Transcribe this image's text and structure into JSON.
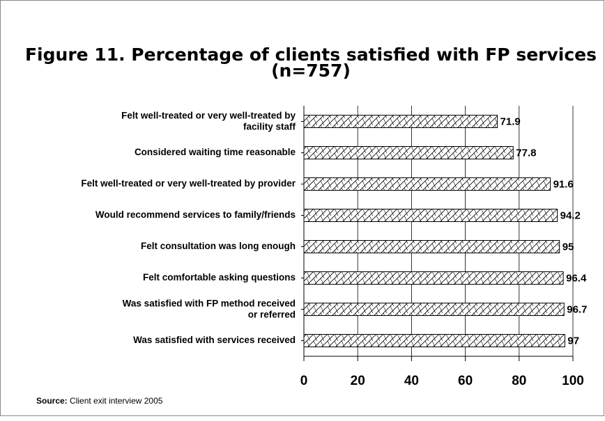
{
  "chart_data": {
    "type": "hbar",
    "title": "Figure 11. Percentage of clients satisfied with FP services",
    "subtitle": "(n=757)",
    "categories": [
      "Felt well-treated or very well-treated by\nfacility staff",
      "Considered waiting time reasonable",
      "Felt well-treated or very well-treated by provider",
      "Would recommend services to family/friends",
      "Felt consultation was long enough",
      "Felt comfortable asking questions",
      "Was satisfied with FP method received\nor referred",
      "Was satisfied with services received"
    ],
    "values": [
      71.9,
      77.8,
      91.6,
      94.2,
      95,
      96.4,
      96.7,
      97
    ],
    "color": "#000000",
    "xlim": [
      0,
      100
    ],
    "xticks": [
      0,
      20,
      40,
      60,
      80,
      100
    ],
    "grid": true,
    "source_label": "Source:",
    "source_text": "Client exit interview 2005"
  }
}
